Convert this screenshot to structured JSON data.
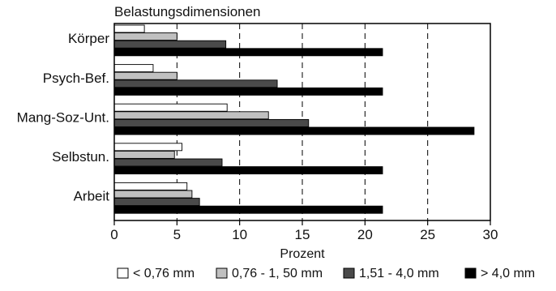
{
  "chart_data": {
    "type": "bar",
    "orientation": "horizontal",
    "title": "Belastungsdimensionen",
    "xlabel": "Prozent",
    "ylabel": "",
    "xlim": [
      0,
      30
    ],
    "xticks": [
      0,
      5,
      10,
      15,
      20,
      25,
      30
    ],
    "grid": "vertical dashed lines at 5, 10, 15, 20, 25",
    "legend_position": "bottom",
    "categories": [
      "Körper",
      "Psych-Bef.",
      "Mang-Soz-Unt.",
      "Selbstun.",
      "Arbeit"
    ],
    "series": [
      {
        "name": "< 0,76 mm",
        "color": "#ffffff",
        "values": [
          2.4,
          3.1,
          9.0,
          5.4,
          5.8
        ]
      },
      {
        "name": "0,76 - 1, 50 mm",
        "color": "#c0c0c0",
        "values": [
          5.0,
          5.0,
          12.3,
          4.8,
          6.2
        ]
      },
      {
        "name": "1,51 - 4,0 mm",
        "color": "#4a4a4a",
        "values": [
          8.9,
          13.0,
          15.5,
          8.6,
          6.8
        ]
      },
      {
        "name": "> 4,0 mm",
        "color": "#000000",
        "values": [
          21.4,
          21.4,
          28.7,
          21.4,
          21.4
        ]
      }
    ]
  }
}
